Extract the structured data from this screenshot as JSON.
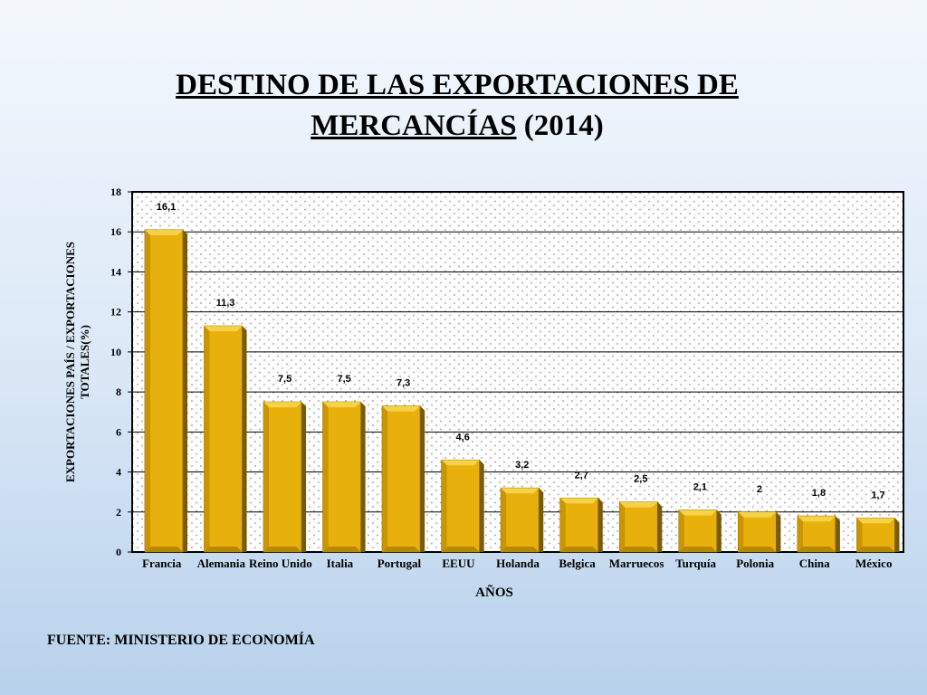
{
  "title": {
    "line1": "DESTINO DE LAS EXPORTACIONES DE",
    "line2_underlined": "MERCANCÍAS",
    "line2_rest": " (2014)"
  },
  "footer": "FUENTE: MINISTERIO DE ECONOMÍA",
  "chart_data": {
    "type": "bar",
    "categories": [
      "Francia",
      "Alemania",
      "Reino Unido",
      "Italia",
      "Portugal",
      "EEUU",
      "Holanda",
      "Belgica",
      "Marruecos",
      "Turquía",
      "Polonia",
      "China",
      "México"
    ],
    "values": [
      16.1,
      11.3,
      7.5,
      7.5,
      7.3,
      4.6,
      3.2,
      2.7,
      2.5,
      2.1,
      2,
      1.8,
      1.7
    ],
    "data_labels": [
      "16,1",
      "11,3",
      "7,5",
      "7,5",
      "7,3",
      "4,6",
      "3,2",
      "2,7",
      "2,5",
      "2,1",
      "2",
      "1,8",
      "1,7"
    ],
    "xlabel": "AÑOS",
    "ylabel_lines": [
      "EXPORTACIONES PAÍS / EXPORTACIONES",
      "TOTALES(%)"
    ],
    "ylim": [
      0,
      18
    ],
    "yticks": [
      0,
      2,
      4,
      6,
      8,
      10,
      12,
      14,
      16,
      18
    ],
    "grid": true,
    "legend": "none",
    "colors": {
      "bar_face": "#e8b00a",
      "bar_side": "#7a5a05",
      "bar_top": "#f5d24a",
      "plot_bg": "#ffffff",
      "dots": "#9a9a9a"
    }
  }
}
